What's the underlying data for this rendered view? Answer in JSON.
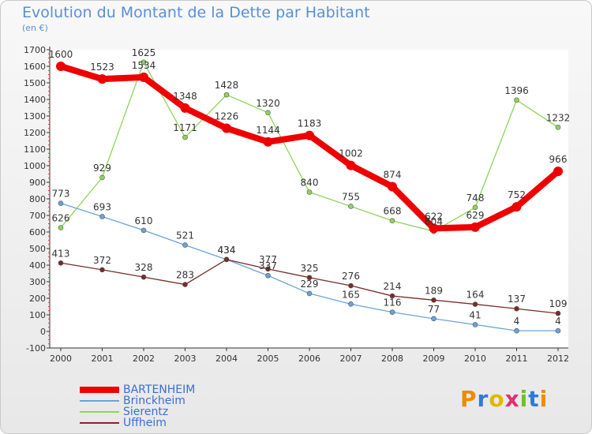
{
  "title": "Evolution du Montant de la Dette par Habitant",
  "subtitle": "(en €)",
  "logo": [
    "P",
    "r",
    "o",
    "x",
    "i",
    "t",
    "i"
  ],
  "logo_colors": [
    "#f08a00",
    "#2f7ad8",
    "#e0b800",
    "#e03070",
    "#6fbf2a",
    "#2f7ad8",
    "#f08a00"
  ],
  "chart_data": {
    "type": "line",
    "x": [
      "2000",
      "2001",
      "2002",
      "2003",
      "2004",
      "2005",
      "2006",
      "2007",
      "2008",
      "2009",
      "2010",
      "2011",
      "2012"
    ],
    "ylim": [
      -100,
      1700
    ],
    "yticks": [
      -100,
      0,
      100,
      200,
      300,
      400,
      500,
      600,
      700,
      800,
      900,
      1000,
      1100,
      1200,
      1300,
      1400,
      1500,
      1600,
      1700
    ],
    "grid": false,
    "legend_placement": "bottom-left",
    "series": [
      {
        "name": "BARTENHEIM",
        "color": "#ee0000",
        "values": [
          1600,
          1523,
          1534,
          1348,
          1226,
          1144,
          1183,
          1002,
          874,
          622,
          629,
          752,
          966
        ]
      },
      {
        "name": "Brinckheim",
        "color": "#6aa3d8",
        "values": [
          773,
          693,
          610,
          521,
          434,
          337,
          229,
          165,
          116,
          77,
          41,
          4,
          4
        ]
      },
      {
        "name": "Sierentz",
        "color": "#8fd45a",
        "values": [
          626,
          929,
          1625,
          1171,
          1428,
          1320,
          840,
          755,
          668,
          604,
          748,
          1396,
          1232
        ]
      },
      {
        "name": "Uffheim",
        "color": "#7a2a2a",
        "values": [
          413,
          372,
          328,
          283,
          434,
          377,
          325,
          276,
          214,
          189,
          164,
          137,
          109
        ]
      }
    ]
  }
}
